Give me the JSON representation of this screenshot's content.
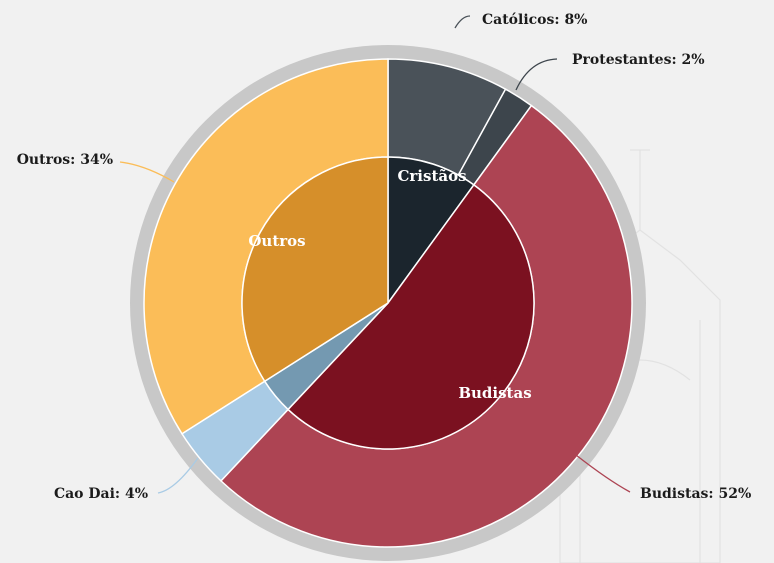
{
  "chart_data": {
    "type": "pie",
    "variant": "two-level donut",
    "outer": {
      "slices": [
        {
          "label": "Católicos",
          "value": 8,
          "text": "Católicos: 8%",
          "color": "#4a5259"
        },
        {
          "label": "Protestantes",
          "value": 2,
          "text": "Protestantes: 2%",
          "color": "#3d454c"
        },
        {
          "label": "Budistas",
          "value": 52,
          "text": "Budistas: 52%",
          "color": "#ad4453"
        },
        {
          "label": "Cao Dai",
          "value": 4,
          "text": "Cao Dai:  4%",
          "color": "#a9cbe5"
        },
        {
          "label": "Outros",
          "value": 34,
          "text": "Outros: 34%",
          "color": "#fbbd58"
        }
      ]
    },
    "inner": {
      "slices": [
        {
          "label": "Cristãos",
          "value": 10,
          "color": "#1b252d"
        },
        {
          "label": "Budistas",
          "value": 52,
          "color": "#7b1120"
        },
        {
          "label": "Cao Dai",
          "value": 4,
          "color": "#7499b1"
        },
        {
          "label": "Outros",
          "value": 34,
          "color": "#d68f2a"
        }
      ]
    },
    "ring_color": "#c8c8c8",
    "background_color": "#f1f1f1",
    "inner_label_color": "#ffffff"
  }
}
